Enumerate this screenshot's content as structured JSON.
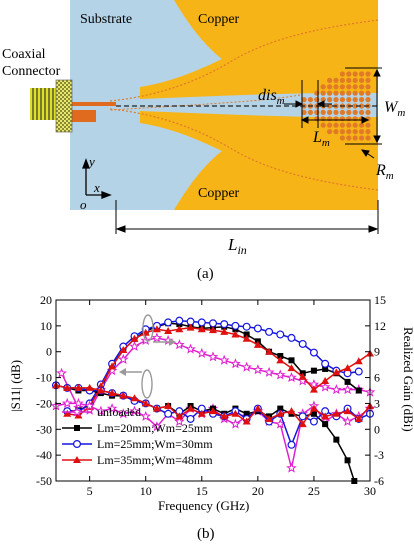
{
  "panel_a": {
    "coax_label_1": "Coaxial",
    "coax_label_2": "Connector",
    "substrate": "Substrate",
    "copper_top": "Copper",
    "copper_bottom": "Copper",
    "dis": "dis",
    "dis_sub": "m",
    "L": "L",
    "L_sub": "m",
    "W": "W",
    "W_sub": "m",
    "R": "R",
    "R_sub": "m",
    "axis_y": "y",
    "axis_x": "x",
    "axis_o": "o",
    "Lin": "L",
    "Lin_sub": "in",
    "caption": "(a)",
    "colors": {
      "substrate": "#b5d3e7",
      "copper": "#f6b417",
      "dots": "#e07a26",
      "feed": "#e06a1e"
    }
  },
  "panel_b": {
    "caption": "(b)",
    "legend": [
      {
        "label": "unloaded",
        "color": "#e020d0",
        "marker": "star"
      },
      {
        "label": "Lm=20mm;Wm=25mm",
        "color": "#000000",
        "marker": "square"
      },
      {
        "label": "Lm=25mm;Wm=30mm",
        "color": "#1515e0",
        "marker": "circle"
      },
      {
        "label": "Lm=35mm;Wm=48mm",
        "color": "#e01010",
        "marker": "triangle"
      }
    ]
  },
  "chart_data": {
    "type": "line",
    "xlabel": "Frequency (GHz)",
    "ylabel": "|S11| (dB)",
    "ylabel_right": "Realized Gain (dBi)",
    "xlim": [
      2,
      30
    ],
    "ylim": [
      -50,
      20
    ],
    "ylim_right": [
      -6,
      15
    ],
    "x_ticks": [
      5,
      10,
      15,
      20,
      25,
      30
    ],
    "y_ticks": [
      20,
      10,
      0,
      -10,
      -20,
      -30,
      -40,
      -50
    ],
    "y_ticks_right": [
      15,
      12,
      9,
      6,
      3,
      0,
      -3,
      -6
    ],
    "legend_position": "lower-left",
    "series": [
      {
        "name": "unloaded",
        "axis": "right",
        "marker": "star",
        "color": "#e020d0",
        "x": [
          2.5,
          4,
          5,
          6,
          7,
          8,
          9,
          10,
          11,
          12,
          13,
          14,
          15,
          16,
          17,
          18,
          19,
          20,
          21,
          22,
          23,
          24,
          25,
          26,
          27,
          28,
          29,
          30
        ],
        "y": [
          6.5,
          2.5,
          2.2,
          4.6,
          6.8,
          8.1,
          9.6,
          10.3,
          10.6,
          10.3,
          9.8,
          9.3,
          8.8,
          8.4,
          8.0,
          7.6,
          7.2,
          6.9,
          6.6,
          6.3,
          6.0,
          5.6,
          5.2,
          4.9,
          4.6,
          4.6,
          4.6,
          4.3
        ]
      },
      {
        "name": "Lm=20mm;Wm=25mm",
        "axis": "right",
        "marker": "square",
        "color": "#000000",
        "x": [
          3,
          4,
          5,
          6,
          7,
          8,
          9,
          10,
          11,
          12,
          13,
          14,
          15,
          16,
          17,
          18,
          19,
          20,
          21,
          22,
          23,
          24,
          25,
          26,
          27,
          28,
          29
        ],
        "y": [
          2.1,
          2.2,
          2.8,
          4.8,
          7.4,
          9.2,
          10.5,
          11.4,
          11.9,
          12.3,
          12.2,
          11.9,
          11.7,
          11.8,
          11.9,
          11.6,
          11.0,
          10.2,
          9.0,
          8.5,
          8.0,
          6.5,
          6.8,
          7.0,
          6.5,
          5.5,
          4.5
        ]
      },
      {
        "name": "Lm=25mm;Wm=30mm",
        "axis": "right",
        "marker": "circle",
        "color": "#1515e0",
        "x": [
          3,
          4,
          5,
          6,
          7,
          8,
          9,
          10,
          11,
          12,
          13,
          14,
          15,
          16,
          17,
          18,
          19,
          20,
          21,
          22,
          23,
          24,
          25,
          26,
          27,
          28,
          29
        ],
        "y": [
          2.1,
          2.0,
          3.0,
          5.2,
          7.6,
          9.6,
          10.8,
          11.6,
          12.0,
          12.4,
          12.6,
          12.5,
          12.4,
          12.3,
          12.2,
          12.0,
          11.9,
          11.7,
          11.3,
          11.0,
          10.6,
          9.9,
          8.9,
          7.6,
          6.8,
          6.5,
          6.7
        ]
      },
      {
        "name": "Lm=35mm;Wm=48mm",
        "axis": "right",
        "marker": "triangle",
        "color": "#e01010",
        "x": [
          3,
          4,
          5,
          6,
          7,
          8,
          9,
          10,
          11,
          12,
          13,
          14,
          15,
          16,
          17,
          18,
          19,
          20,
          21,
          22,
          23,
          24,
          25,
          26,
          27,
          28,
          29,
          30
        ],
        "y": [
          1.8,
          1.6,
          2.6,
          5.0,
          7.3,
          9.2,
          10.5,
          11.2,
          11.6,
          11.4,
          11.6,
          11.8,
          11.6,
          11.5,
          11.3,
          11.0,
          10.5,
          9.8,
          9.0,
          8.0,
          7.1,
          6.1,
          4.6,
          5.6,
          6.6,
          7.1,
          7.9,
          8.8
        ]
      },
      {
        "name": "unloaded",
        "axis": "left",
        "marker": "star",
        "color": "#e020d0",
        "x": [
          2,
          3,
          4,
          5,
          6,
          7,
          8,
          9,
          10,
          11,
          12,
          13,
          14,
          15,
          16,
          17,
          18,
          19,
          20,
          21,
          22,
          23,
          24,
          25,
          26,
          27,
          28,
          29,
          30
        ],
        "y": [
          -21,
          -20,
          -20,
          -21,
          -23,
          -22,
          -24,
          -23,
          -25,
          -29,
          -24,
          -27,
          -22,
          -24,
          -22,
          -26,
          -28,
          -25,
          -23,
          -27,
          -28,
          -45,
          -24,
          -21,
          -27,
          -24,
          -27,
          -25,
          -22
        ]
      },
      {
        "name": "Lm=20mm;Wm=25mm",
        "axis": "left",
        "marker": "square",
        "color": "#000000",
        "x": [
          2,
          3,
          4,
          5,
          6,
          7,
          8,
          9,
          10,
          11,
          12,
          13,
          14,
          15,
          16,
          17,
          18,
          19,
          20,
          21,
          22,
          23,
          24,
          25,
          26,
          27,
          28,
          28.6
        ],
        "y": [
          -13,
          -14,
          -15,
          -15,
          -16,
          -17,
          -17,
          -19,
          -20,
          -22,
          -21,
          -24,
          -21,
          -23,
          -22,
          -24,
          -22,
          -24,
          -23,
          -25,
          -22,
          -24,
          -25,
          -24,
          -28,
          -34,
          -42,
          -50
        ]
      },
      {
        "name": "Lm=25mm;Wm=30mm",
        "axis": "left",
        "marker": "circle",
        "color": "#1515e0",
        "x": [
          2,
          3,
          4,
          5,
          6,
          7,
          8,
          9,
          10,
          11,
          12,
          13,
          14,
          15,
          16,
          17,
          18,
          19,
          20,
          21,
          22,
          23,
          24,
          25,
          26,
          27,
          28,
          29,
          30
        ],
        "y": [
          -13,
          -14,
          -14,
          -15,
          -15,
          -16,
          -17,
          -19,
          -20,
          -22,
          -24,
          -23,
          -26,
          -22,
          -24,
          -25,
          -23,
          -26,
          -22,
          -27,
          -24,
          -36,
          -25,
          -27,
          -23,
          -25,
          -22,
          -26,
          -24
        ]
      },
      {
        "name": "Lm=35mm;Wm=48mm",
        "axis": "left",
        "marker": "triangle",
        "color": "#e01010",
        "x": [
          2,
          3,
          4,
          5,
          6,
          7,
          8,
          9,
          10,
          11,
          12,
          13,
          14,
          15,
          16,
          17,
          18,
          19,
          20,
          21,
          22,
          23,
          24,
          25,
          26,
          27,
          28,
          29,
          30
        ],
        "y": [
          -13,
          -14,
          -14,
          -14,
          -15,
          -16,
          -17,
          -18,
          -20,
          -22,
          -21,
          -25,
          -22,
          -24,
          -23,
          -25,
          -24,
          -27,
          -22,
          -26,
          -24,
          -23,
          -28,
          -22,
          -25,
          -24,
          -23,
          -26,
          -21
        ]
      }
    ]
  }
}
